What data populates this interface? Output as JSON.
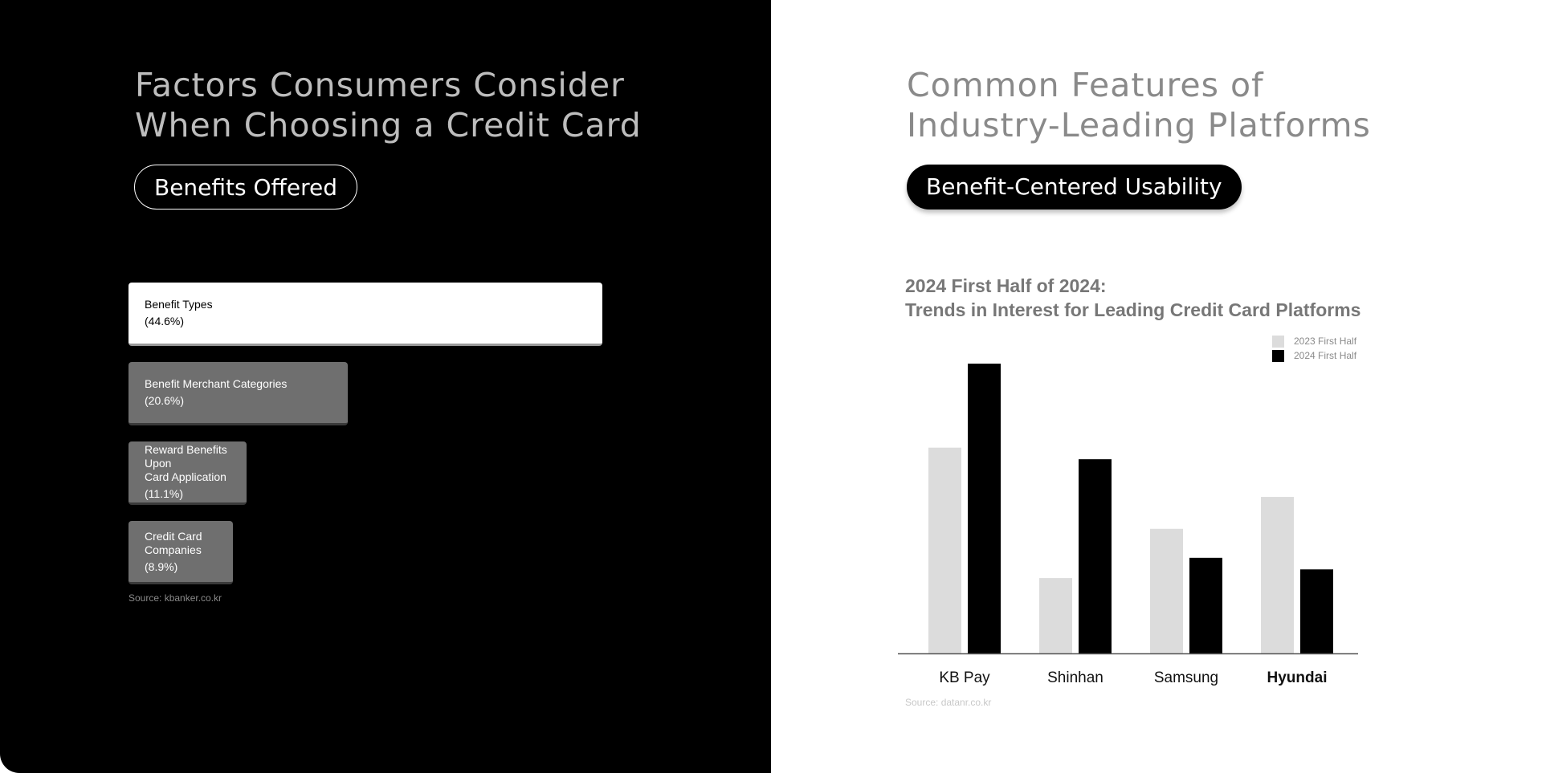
{
  "left": {
    "heading_lines": [
      "Factors Consumers Consider",
      "When Choosing a Credit Card"
    ],
    "pill_label": "Benefits Offered",
    "factors": [
      {
        "label": "Benefit Types",
        "percent": "(44.6%)",
        "value": 44.6
      },
      {
        "label": "Benefit Merchant Categories",
        "percent": "(20.6%)",
        "value": 20.6
      },
      {
        "label": "Reward Benefits Upon\nCard Application",
        "percent": "(11.1%)",
        "value": 11.1
      },
      {
        "label": "Credit Card\nCompanies",
        "percent": "(8.9%)",
        "value": 8.9
      }
    ],
    "source": "Source: kbanker.co.kr"
  },
  "right": {
    "heading_lines": [
      "Common Features of",
      "Industry-Leading Platforms"
    ],
    "pill_label": "Benefit-Centered Usability",
    "chart_title_lines": [
      "2024 First Half of 2024:",
      "Trends in Interest for Leading Credit Card Platforms"
    ],
    "source": "Source: datanr.co.kr"
  },
  "chart_data": [
    {
      "type": "bar",
      "orientation": "horizontal",
      "title": "Factors Consumers Consider When Choosing a Credit Card",
      "categories": [
        "Benefit Types",
        "Benefit Merchant Categories",
        "Reward Benefits Upon Card Application",
        "Credit Card Companies"
      ],
      "values": [
        44.6,
        20.6,
        11.1,
        8.9
      ],
      "unit": "%"
    },
    {
      "type": "bar",
      "title": "2024 First Half of 2024: Trends in Interest for Leading Credit Card Platforms",
      "categories": [
        "KB Pay",
        "Shinhan",
        "Samsung",
        "Hyundai"
      ],
      "highlight_category": "Hyundai",
      "series": [
        {
          "name": "2023 First Half",
          "color": "#dcdcdc",
          "values": [
            71,
            26,
            43,
            54
          ]
        },
        {
          "name": "2024  First Half",
          "color": "#000000",
          "values": [
            100,
            67,
            33,
            29
          ]
        }
      ],
      "ylim": [
        0,
        100
      ],
      "legend": "top-right",
      "grid": false,
      "axis_tick_labels": false
    }
  ]
}
